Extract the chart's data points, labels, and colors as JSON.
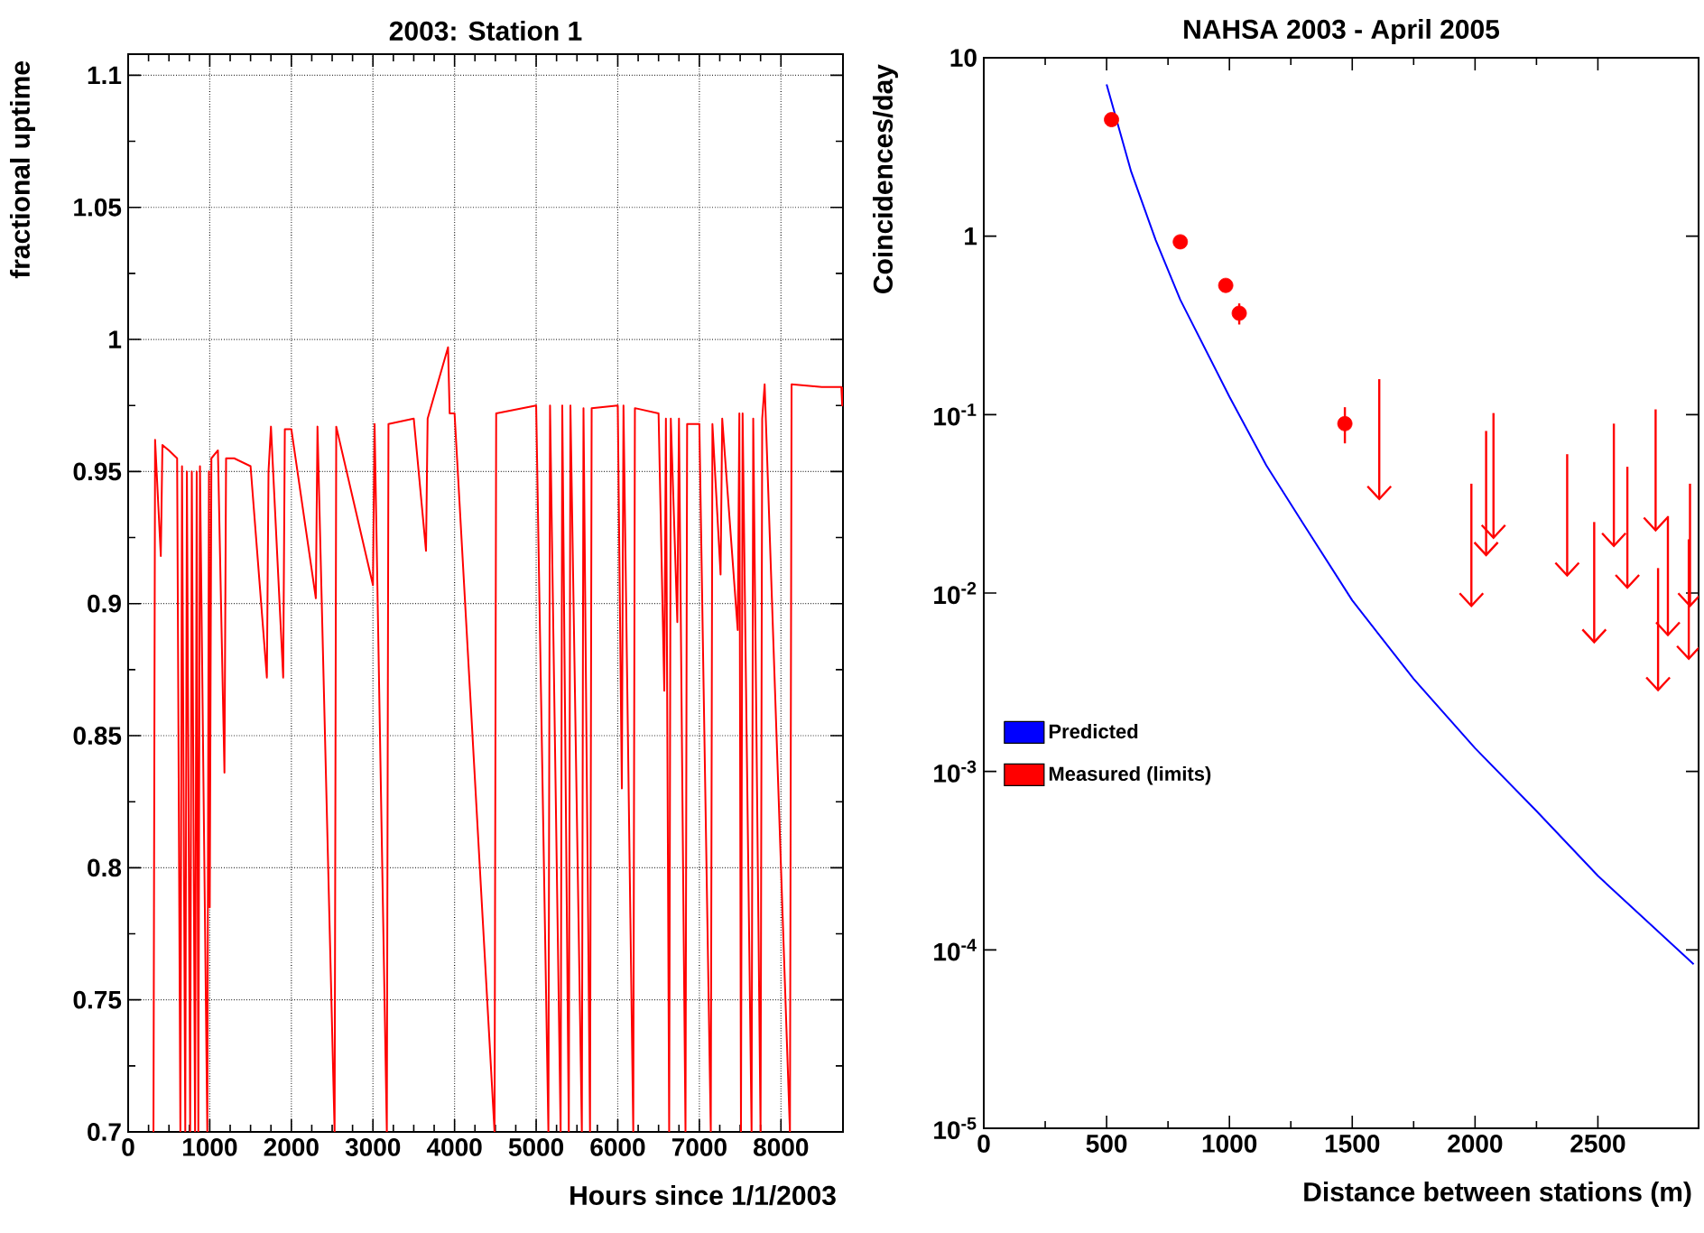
{
  "chart_data": [
    {
      "type": "line",
      "title": "2003: Station 1",
      "xlabel": "Hours since 1/1/2003",
      "ylabel": "fractional uptime",
      "xlim": [
        0,
        8760
      ],
      "ylim": [
        0.7,
        1.108
      ],
      "xticks": [
        0,
        1000,
        2000,
        3000,
        4000,
        5000,
        6000,
        7000,
        8000
      ],
      "yticks": [
        0.7,
        0.75,
        0.8,
        0.85,
        0.9,
        0.95,
        1,
        1.05,
        1.1
      ],
      "grid": true,
      "series": [
        {
          "color": "#ff0000",
          "x": [
            310,
            330,
            400,
            420,
            500,
            600,
            640,
            660,
            700,
            720,
            760,
            780,
            820,
            840,
            860,
            880,
            970,
            990,
            1000,
            1020,
            1100,
            1180,
            1200,
            1300,
            1500,
            1700,
            1720,
            1750,
            1900,
            1920,
            2000,
            2300,
            2320,
            2530,
            2550,
            3000,
            3020,
            3170,
            3190,
            3500,
            3650,
            3670,
            3920,
            3940,
            4000,
            4490,
            4510,
            5000,
            5150,
            5170,
            5300,
            5320,
            5400,
            5420,
            5560,
            5580,
            5660,
            5680,
            6000,
            6050,
            6070,
            6190,
            6210,
            6500,
            6570,
            6590,
            6630,
            6650,
            6730,
            6750,
            6830,
            6850,
            7000,
            7140,
            7160,
            7260,
            7280,
            7470,
            7490,
            7510,
            7530,
            7640,
            7660,
            7750,
            7770,
            7800,
            8110,
            8130,
            8500,
            8740,
            8750,
            8760
          ],
          "values": [
            0.7,
            0.962,
            0.918,
            0.96,
            0.958,
            0.955,
            0.7,
            0.952,
            0.7,
            0.95,
            0.7,
            0.95,
            0.7,
            0.95,
            0.7,
            0.952,
            0.7,
            0.95,
            0.785,
            0.955,
            0.958,
            0.836,
            0.955,
            0.955,
            0.952,
            0.872,
            0.95,
            0.967,
            0.872,
            0.966,
            0.966,
            0.902,
            0.967,
            0.7,
            0.967,
            0.907,
            0.968,
            0.7,
            0.968,
            0.97,
            0.92,
            0.97,
            0.997,
            0.972,
            0.972,
            0.7,
            0.972,
            0.975,
            0.7,
            0.975,
            0.7,
            0.975,
            0.7,
            0.975,
            0.7,
            0.974,
            0.7,
            0.974,
            0.975,
            0.83,
            0.975,
            0.7,
            0.974,
            0.972,
            0.867,
            0.97,
            0.7,
            0.97,
            0.893,
            0.97,
            0.7,
            0.968,
            0.968,
            0.7,
            0.968,
            0.911,
            0.97,
            0.89,
            0.972,
            0.7,
            0.972,
            0.7,
            0.97,
            0.7,
            0.97,
            0.983,
            0.7,
            0.983,
            0.982,
            0.982,
            0.975,
            0.982
          ]
        }
      ]
    },
    {
      "type": "line",
      "title": "NAHSA 2003 - April 2005",
      "xlabel": "Distance between stations (m)",
      "ylabel": "Coincidences/day",
      "log": "y",
      "legend": "left",
      "xlim": [
        0,
        2910
      ],
      "ylim": [
        1e-05,
        10
      ],
      "xticks": [
        0,
        500,
        1000,
        1500,
        2000,
        2500
      ],
      "yticks": [
        {
          "value": 10,
          "label": "10"
        },
        {
          "value": 1,
          "label": "1"
        },
        {
          "value": 0.1,
          "label": "10$^{-1}$"
        },
        {
          "value": 0.01,
          "label": "10$^{-2}$"
        },
        {
          "value": 0.001,
          "label": "10$^{-3}$"
        },
        {
          "value": 0.0001,
          "label": "10$^{-4}$"
        },
        {
          "value": 1e-05,
          "label": "10$^{-5}$"
        }
      ],
      "series": [
        {
          "name": "Predicted",
          "type": "line",
          "color": "#0000ff",
          "x": [
            500,
            600,
            700,
            800,
            1000,
            1150,
            1300,
            1500,
            1750,
            2000,
            2250,
            2500,
            2890
          ],
          "values": [
            7.1,
            2.3,
            0.95,
            0.44,
            0.126,
            0.052,
            0.0245,
            0.0091,
            0.0033,
            0.00135,
            0.0006,
            0.00026,
            8.3e-05
          ]
        },
        {
          "name": "Measured (limits)",
          "type": "scatter",
          "marker": "circle",
          "color": "#ff0000",
          "x": [
            520,
            800,
            985,
            1040,
            1470
          ],
          "values": [
            4.5,
            0.93,
            0.53,
            0.37,
            0.089
          ],
          "errors": [
            null,
            null,
            null,
            [
              0.32,
              0.42
            ],
            [
              0.069,
              0.11
            ]
          ]
        },
        {
          "type": "scatter",
          "color": "#ff0000",
          "x": [
            1610,
            1985,
            2045,
            2075,
            2375,
            2485,
            2565,
            2620,
            2735,
            2745,
            2785,
            2870,
            2875
          ],
          "values": [
            0.0367,
            0.0093,
            0.0178,
            0.0223,
            0.0137,
            0.0058,
            0.02,
            0.0117,
            0.0244,
            0.0031,
            0.0063,
            0.0047,
            0.0092
          ],
          "errors": [
            [
              0.033,
              0.158
            ],
            [
              0.0083,
              0.041
            ],
            [
              0.016,
              0.081
            ],
            [
              0.02,
              0.102
            ],
            [
              0.0123,
              0.06
            ],
            [
              0.0052,
              0.025
            ],
            [
              0.018,
              0.089
            ],
            [
              0.0105,
              0.051
            ],
            [
              0.022,
              0.107
            ],
            [
              0.0028,
              0.0138
            ],
            [
              0.0057,
              0.027
            ],
            [
              0.0042,
              0.02
            ],
            [
              0.0083,
              0.041
            ]
          ]
        }
      ]
    }
  ]
}
